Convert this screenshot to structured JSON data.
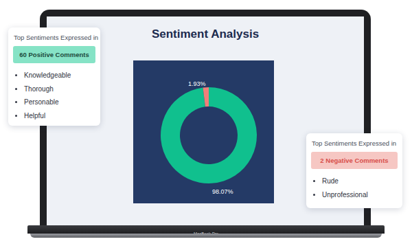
{
  "chart_data": {
    "type": "pie",
    "title": "Sentiment Analysis",
    "values": [
      98.07,
      1.93
    ],
    "value_labels": [
      "98.07%",
      "1.93%"
    ],
    "colors": [
      "#10c08e",
      "#f07f7a"
    ],
    "data_labels": true
  },
  "positive_card": {
    "heading": "Top Sentiments Expressed in",
    "badge": "60 Positive Comments",
    "items": [
      "Knowledgeable",
      "Thorough",
      "Personable",
      "Helpful"
    ]
  },
  "negative_card": {
    "heading": "Top Sentiments Expressed in",
    "badge": "2 Negative Comments",
    "items": [
      "Rude",
      "Unprofessional"
    ]
  },
  "device_label": "MacBook Pro"
}
